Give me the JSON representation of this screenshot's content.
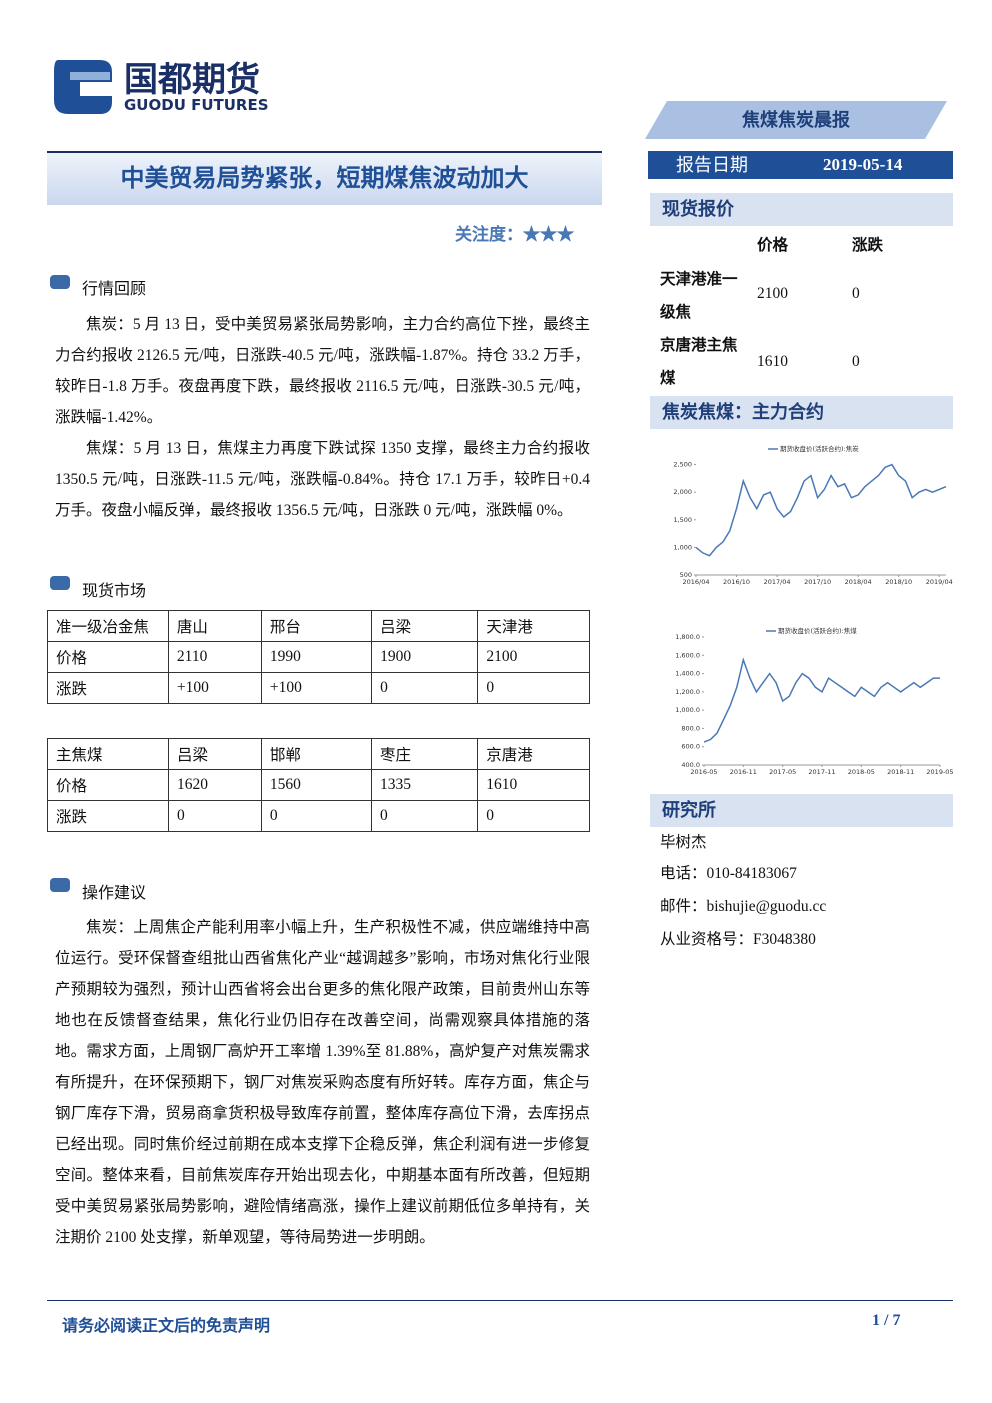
{
  "header": {
    "brand_cn": "国都期货",
    "brand_en": "GUODU FUTURES",
    "report_name": "焦煤焦炭晨报",
    "title": "中美贸易局势紧张，短期煤焦波动加大",
    "attention": "关注度：★★★",
    "date_label": "报告日期",
    "date": "2019-05-14"
  },
  "sections": [
    {
      "heading": "行情回顾",
      "paragraphs": [
        "焦炭：5 月 13 日，受中美贸易紧张局势影响，主力合约高位下挫，最终主力合约报收 2126.5 元/吨，日涨跌-40.5 元/吨，涨跌幅-1.87%。持仓 33.2 万手，较昨日-1.8 万手。夜盘再度下跌，最终报收 2116.5 元/吨，日涨跌-30.5 元/吨，涨跌幅-1.42%。",
        "焦煤：5 月 13 日，焦煤主力再度下跌试探 1350 支撑，最终主力合约报收 1350.5 元/吨，日涨跌-11.5 元/吨，涨跌幅-0.84%。持仓 17.1 万手，较昨日+0.4 万手。夜盘小幅反弹，最终报收 1356.5 元/吨，日涨跌 0 元/吨，涨跌幅 0%。"
      ]
    },
    {
      "heading": "现货市场",
      "tables": [
        [
          [
            "准一级冶金焦",
            "唐山",
            "邢台",
            "吕梁",
            "天津港"
          ],
          [
            "价格",
            "2110",
            "1990",
            "1900",
            "2100"
          ],
          [
            "涨跌",
            "+100",
            "+100",
            "0",
            "0"
          ]
        ],
        [
          [
            "主焦煤",
            "吕梁",
            "邯郸",
            "枣庄",
            "京唐港"
          ],
          [
            "价格",
            "1620",
            "1560",
            "1335",
            "1610"
          ],
          [
            "涨跌",
            "0",
            "0",
            "0",
            "0"
          ]
        ]
      ]
    },
    {
      "heading": "操作建议",
      "paragraphs": [
        "焦炭：上周焦企产能利用率小幅上升，生产积极性不减，供应端维持中高位运行。受环保督查组批山西省焦化产业“越调越多”影响，市场对焦化行业限产预期较为强烈，预计山西省将会出台更多的焦化限产政策，目前贵州山东等地也在反馈督查结果，焦化行业仍旧存在改善空间，尚需观察具体措施的落地。需求方面，上周钢厂高炉开工率增 1.39%至 81.88%，高炉复产对焦炭需求有所提升，在环保预期下，钢厂对焦炭采购态度有所好转。库存方面，焦企与钢厂库存下滑，贸易商拿货积极导致库存前置，整体库存高位下滑，去库拐点已经出现。同时焦价经过前期在成本支撑下企稳反弹，焦企利润有进一步修复空间。整体来看，目前焦炭库存开始出现去化，中期基本面有所改善，但短期受中美贸易紧张局势影响，避险情绪高涨，操作上建议前期低位多单持有，关注期价 2100 处支撑，新单观望，等待局势进一步明朗。"
      ]
    }
  ],
  "sidebar": {
    "spot_heading": "现货报价",
    "spot_columns": [
      "价格",
      "涨跌"
    ],
    "spot_rows": [
      [
        "天津港准一级焦",
        "2100",
        "0"
      ],
      [
        "京唐港主焦煤",
        "1610",
        "0"
      ]
    ],
    "chart_heading": "焦炭焦煤：主力合约",
    "research_heading": "研究所",
    "researcher": "毕树杰",
    "phone": "电话：010-84183067",
    "email": "邮件：bishujie@guodu.cc",
    "license": "从业资格号：F3048380"
  },
  "footer": {
    "disclaimer": "请务必阅读正文后的免责声明",
    "page": "1 / 7"
  },
  "chart_data": [
    {
      "type": "line",
      "legend": "期货收盘价(活跃合约):焦炭",
      "color": "#4a78b5",
      "ylim": [
        500,
        2800
      ],
      "yticks": [
        500,
        {
          "value": 1000,
          "label": "1,000"
        },
        {
          "value": 1500,
          "label": "1,500"
        },
        {
          "value": 2000,
          "label": "2,000"
        },
        {
          "value": 2500,
          "label": "2,500"
        }
      ],
      "categories": [
        "2016/04",
        null,
        null,
        null,
        null,
        null,
        "2016/10",
        null,
        null,
        null,
        null,
        null,
        "2017/04",
        null,
        null,
        null,
        null,
        null,
        "2017/10",
        null,
        null,
        null,
        null,
        null,
        "2018/04",
        null,
        null,
        null,
        null,
        null,
        "2018/10",
        null,
        null,
        null,
        null,
        null,
        "2019/04",
        null
      ],
      "values": [
        1000,
        900,
        850,
        1000,
        1100,
        1300,
        1700,
        2200,
        1900,
        1700,
        1950,
        2000,
        1700,
        1550,
        1650,
        1900,
        2200,
        2300,
        1900,
        2050,
        2300,
        2100,
        2150,
        1900,
        1950,
        2100,
        2200,
        2300,
        2450,
        2500,
        2300,
        2200,
        1900,
        2000,
        2050,
        2000,
        2050,
        2100
      ]
    },
    {
      "type": "line",
      "legend": "期货收盘价(活跃合约):焦煤",
      "color": "#4a78b5",
      "ylim": [
        400,
        1800
      ],
      "yticks": [
        {
          "value": 400,
          "label": "400.0"
        },
        {
          "value": 600,
          "label": "600.0"
        },
        {
          "value": 800,
          "label": "800.0"
        },
        {
          "value": 1000,
          "label": "1,000.0"
        },
        {
          "value": 1200,
          "label": "1,200.0"
        },
        {
          "value": 1400,
          "label": "1,400.0"
        },
        {
          "value": 1600,
          "label": "1,600.0"
        },
        {
          "value": 1800,
          "label": "1,800.0"
        }
      ],
      "categories": [
        "2016-05",
        null,
        null,
        null,
        null,
        null,
        "2016-11",
        null,
        null,
        null,
        null,
        null,
        "2017-05",
        null,
        null,
        null,
        null,
        null,
        "2017-11",
        null,
        null,
        null,
        null,
        null,
        "2018-05",
        null,
        null,
        null,
        null,
        null,
        "2018-11",
        null,
        null,
        null,
        null,
        null,
        "2019-05"
      ],
      "values": [
        650,
        680,
        750,
        900,
        1050,
        1250,
        1550,
        1350,
        1200,
        1300,
        1400,
        1300,
        1100,
        1150,
        1300,
        1400,
        1350,
        1250,
        1200,
        1350,
        1300,
        1250,
        1200,
        1150,
        1250,
        1200,
        1150,
        1250,
        1300,
        1250,
        1200,
        1250,
        1300,
        1250,
        1300,
        1350,
        1350
      ]
    }
  ]
}
